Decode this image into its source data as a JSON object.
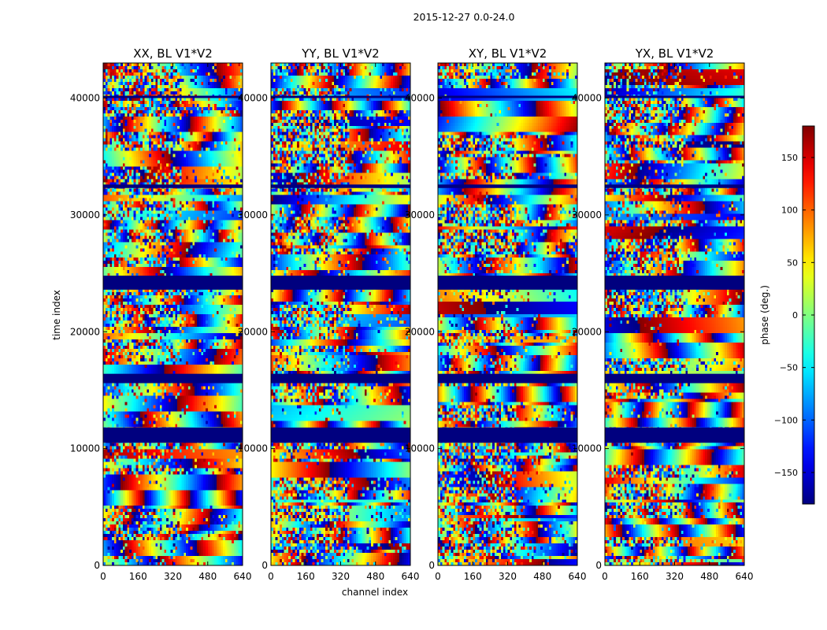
{
  "suptitle": "2015-12-27 0.0-24.0",
  "chart_data": {
    "type": "heatmap",
    "xlabel": "channel index",
    "ylabel": "time index",
    "xlim": [
      0,
      640
    ],
    "ylim": [
      0,
      43000
    ],
    "xticks": [
      0,
      160,
      320,
      480,
      640
    ],
    "yticks": [
      0,
      10000,
      20000,
      30000,
      40000
    ],
    "panels": [
      {
        "id": "xx",
        "title": "XX, BL V1*V2"
      },
      {
        "id": "yy",
        "title": "YY, BL V1*V2"
      },
      {
        "id": "xy",
        "title": "XY, BL V1*V2"
      },
      {
        "id": "yx",
        "title": "YX, BL V1*V2"
      }
    ],
    "masked_time_ranges": [
      [
        10500,
        11800
      ],
      [
        15600,
        16400
      ],
      [
        23600,
        24800
      ],
      [
        32300,
        32600
      ],
      [
        40000,
        40200
      ]
    ],
    "colorbar": {
      "label": "phase (deg.)",
      "range": [
        -180,
        180
      ],
      "ticks": [
        -150,
        -100,
        -50,
        0,
        50,
        100,
        150
      ],
      "colormap": "jet"
    }
  }
}
